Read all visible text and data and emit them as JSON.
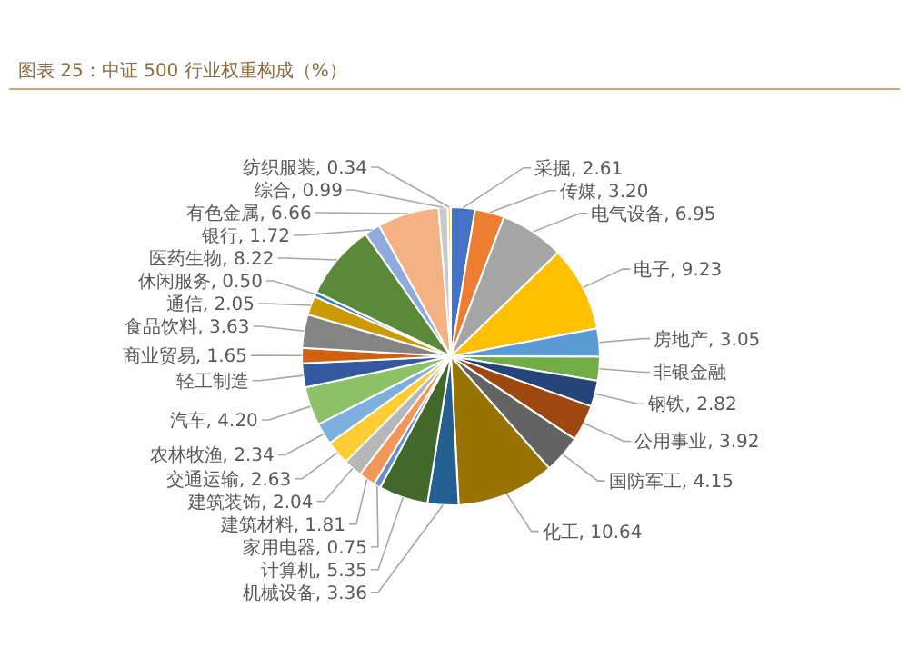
{
  "chart_data": {
    "type": "pie",
    "title": "图表 25：中证 500 行业权重构成（%）",
    "categories": [
      "采掘",
      "传媒",
      "电气设备",
      "电子",
      "房地产",
      "非银金融",
      "钢铁",
      "公用事业",
      "国防军工",
      "化工",
      "机械设备",
      "计算机",
      "家用电器",
      "建筑材料",
      "建筑装饰",
      "交通运输",
      "农林牧渔",
      "汽车",
      "轻工制造",
      "商业贸易",
      "食品饮料",
      "通信",
      "休闲服务",
      "医药生物",
      "银行",
      "有色金属",
      "综合",
      "纺织服装"
    ],
    "values": [
      2.61,
      3.2,
      6.95,
      9.23,
      3.05,
      2.6,
      2.82,
      3.92,
      4.15,
      10.64,
      3.36,
      5.35,
      0.75,
      1.81,
      2.04,
      2.63,
      2.34,
      4.2,
      2.6,
      1.65,
      3.63,
      2.05,
      0.5,
      8.22,
      1.72,
      6.66,
      0.99,
      0.34
    ],
    "value_labels": [
      "2.61",
      "3.20",
      "6.95",
      "9.23",
      "3.05",
      null,
      "2.82",
      "3.92",
      "4.15",
      "10.64",
      "3.36",
      "5.35",
      "0.75",
      "1.81",
      "2.04",
      "2.63",
      "2.34",
      "4.20",
      null,
      "1.65",
      "3.63",
      "2.05",
      "0.50",
      "8.22",
      "1.72",
      "6.66",
      "0.99",
      "0.34"
    ],
    "colors": [
      "#4472c4",
      "#ed7d31",
      "#a5a5a5",
      "#ffc000",
      "#5b9bd5",
      "#70ad47",
      "#264478",
      "#9e480e",
      "#636363",
      "#997300",
      "#255e91",
      "#43682b",
      "#698ed0",
      "#f1975a",
      "#b7b7b7",
      "#ffcd33",
      "#7cafdd",
      "#8cc168",
      "#335aa1",
      "#d26012",
      "#848484",
      "#cc9a00",
      "#327dc2",
      "#5a8a39",
      "#8faadc",
      "#f4b183",
      "#c9c9c9",
      "#ffd966"
    ]
  }
}
